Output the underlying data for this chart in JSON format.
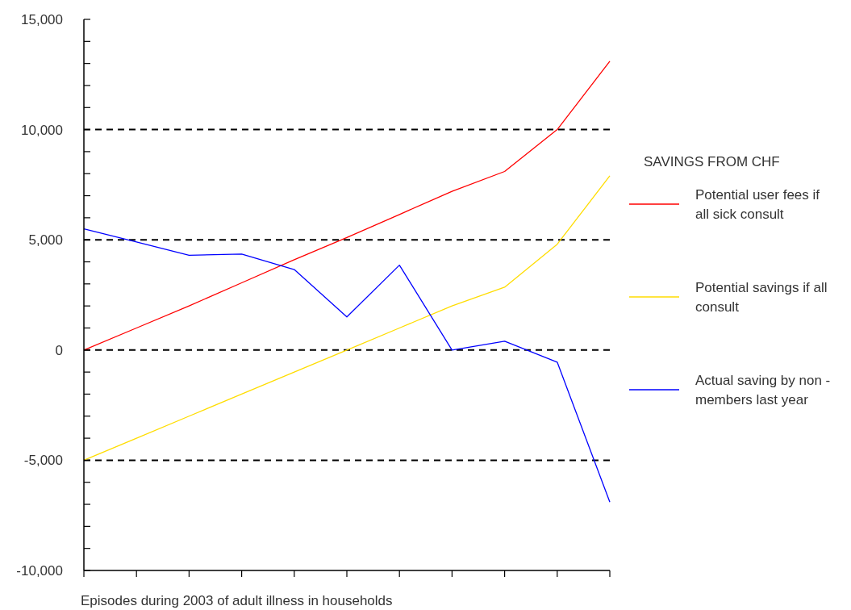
{
  "chart_data": {
    "type": "line",
    "xlabel": "Episodes during 2003 of adult illness in households",
    "legend_title": "SAVINGS FROM CHF",
    "legend": "right",
    "categories": [
      null,
      null,
      null,
      null,
      null,
      null,
      null,
      null,
      null,
      null,
      null
    ],
    "series": [
      {
        "name": "Potential user fees if all sick consult",
        "color": "#ff0000",
        "values": [
          0,
          1000,
          2000,
          3050,
          4100,
          5100,
          6150,
          7200,
          8100,
          10000,
          13100
        ]
      },
      {
        "name": "Potential savings if all consult",
        "color": "#ffdd00",
        "values": [
          -5000,
          -4000,
          -3000,
          -2000,
          -1000,
          0,
          1000,
          2000,
          2850,
          4800,
          7900
        ]
      },
      {
        "name": "Actual saving by non - members last year",
        "color": "#0000ff",
        "values": [
          5500,
          4900,
          4300,
          4350,
          3650,
          1500,
          3850,
          0,
          400,
          -550,
          -6900
        ]
      }
    ],
    "ylim": [
      -10000,
      15000
    ],
    "yticks": [
      {
        "value": -10000,
        "label": "-10,000"
      },
      {
        "value": -9000,
        "label": null
      },
      {
        "value": -8000,
        "label": null
      },
      {
        "value": -7000,
        "label": null
      },
      {
        "value": -6000,
        "label": null
      },
      {
        "value": -5000,
        "label": "-5,000"
      },
      {
        "value": -4000,
        "label": null
      },
      {
        "value": -3000,
        "label": null
      },
      {
        "value": -2000,
        "label": null
      },
      {
        "value": -1000,
        "label": null
      },
      {
        "value": 0,
        "label": "0"
      },
      {
        "value": 1000,
        "label": null
      },
      {
        "value": 2000,
        "label": null
      },
      {
        "value": 3000,
        "label": null
      },
      {
        "value": 4000,
        "label": null
      },
      {
        "value": 5000,
        "label": "5,000"
      },
      {
        "value": 6000,
        "label": null
      },
      {
        "value": 7000,
        "label": null
      },
      {
        "value": 8000,
        "label": null
      },
      {
        "value": 9000,
        "label": null
      },
      {
        "value": 10000,
        "label": "10,000"
      },
      {
        "value": 11000,
        "label": null
      },
      {
        "value": 12000,
        "label": null
      },
      {
        "value": 13000,
        "label": null
      },
      {
        "value": 14000,
        "label": null
      },
      {
        "value": 15000,
        "label": "15,000"
      }
    ],
    "ref_lines": [
      {
        "axis": "y",
        "value": 10000,
        "color": "#000000",
        "line_style": "dashed"
      },
      {
        "axis": "y",
        "value": 5000,
        "color": "#000000",
        "line_style": "dashed"
      },
      {
        "axis": "y",
        "value": 0,
        "color": "#000000",
        "line_style": "dashed"
      },
      {
        "axis": "y",
        "value": -5000,
        "color": "#000000",
        "line_style": "dashed"
      }
    ]
  }
}
